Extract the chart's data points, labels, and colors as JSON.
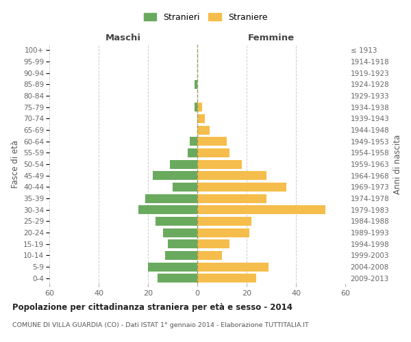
{
  "age_groups": [
    "0-4",
    "5-9",
    "10-14",
    "15-19",
    "20-24",
    "25-29",
    "30-34",
    "35-39",
    "40-44",
    "45-49",
    "50-54",
    "55-59",
    "60-64",
    "65-69",
    "70-74",
    "75-79",
    "80-84",
    "85-89",
    "90-94",
    "95-99",
    "100+"
  ],
  "birth_years": [
    "2009-2013",
    "2004-2008",
    "1999-2003",
    "1994-1998",
    "1989-1993",
    "1984-1988",
    "1979-1983",
    "1974-1978",
    "1969-1973",
    "1964-1968",
    "1959-1963",
    "1954-1958",
    "1949-1953",
    "1944-1948",
    "1939-1943",
    "1934-1938",
    "1929-1933",
    "1924-1928",
    "1919-1923",
    "1914-1918",
    "≤ 1913"
  ],
  "maschi": [
    16,
    20,
    13,
    12,
    14,
    17,
    24,
    21,
    10,
    18,
    11,
    4,
    3,
    0,
    0,
    1,
    0,
    1,
    0,
    0,
    0
  ],
  "femmine": [
    24,
    29,
    10,
    13,
    21,
    22,
    52,
    28,
    36,
    28,
    18,
    13,
    12,
    5,
    3,
    2,
    0,
    0,
    0,
    0,
    0
  ],
  "maschi_color": "#6aaa5e",
  "femmine_color": "#f5bd4b",
  "background_color": "#ffffff",
  "grid_color": "#cccccc",
  "title": "Popolazione per cittadinanza straniera per età e sesso - 2014",
  "subtitle": "COMUNE DI VILLA GUARDIA (CO) - Dati ISTAT 1° gennaio 2014 - Elaborazione TUTTITALIA.IT",
  "xlabel_left": "Maschi",
  "xlabel_right": "Femmine",
  "ylabel_left": "Fasce di età",
  "ylabel_right": "Anni di nascita",
  "legend_maschi": "Stranieri",
  "legend_femmine": "Straniere",
  "xlim": 60,
  "dashed_line_color": "#999966"
}
